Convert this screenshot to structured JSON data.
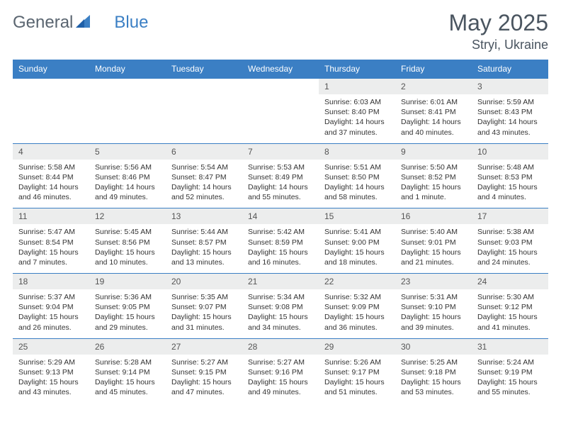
{
  "brand": {
    "g": "General",
    "b": "Blue"
  },
  "title": {
    "month": "May 2025",
    "location": "Stryi, Ukraine"
  },
  "colors": {
    "header_bg": "#3b7fc4",
    "daynum_bg": "#eceded",
    "text": "#333333",
    "title_text": "#4a5560"
  },
  "dow": [
    "Sunday",
    "Monday",
    "Tuesday",
    "Wednesday",
    "Thursday",
    "Friday",
    "Saturday"
  ],
  "weeks": [
    [
      null,
      null,
      null,
      null,
      {
        "n": "1",
        "sr": "6:03 AM",
        "ss": "8:40 PM",
        "dl": "14 hours and 37 minutes."
      },
      {
        "n": "2",
        "sr": "6:01 AM",
        "ss": "8:41 PM",
        "dl": "14 hours and 40 minutes."
      },
      {
        "n": "3",
        "sr": "5:59 AM",
        "ss": "8:43 PM",
        "dl": "14 hours and 43 minutes."
      }
    ],
    [
      {
        "n": "4",
        "sr": "5:58 AM",
        "ss": "8:44 PM",
        "dl": "14 hours and 46 minutes."
      },
      {
        "n": "5",
        "sr": "5:56 AM",
        "ss": "8:46 PM",
        "dl": "14 hours and 49 minutes."
      },
      {
        "n": "6",
        "sr": "5:54 AM",
        "ss": "8:47 PM",
        "dl": "14 hours and 52 minutes."
      },
      {
        "n": "7",
        "sr": "5:53 AM",
        "ss": "8:49 PM",
        "dl": "14 hours and 55 minutes."
      },
      {
        "n": "8",
        "sr": "5:51 AM",
        "ss": "8:50 PM",
        "dl": "14 hours and 58 minutes."
      },
      {
        "n": "9",
        "sr": "5:50 AM",
        "ss": "8:52 PM",
        "dl": "15 hours and 1 minute."
      },
      {
        "n": "10",
        "sr": "5:48 AM",
        "ss": "8:53 PM",
        "dl": "15 hours and 4 minutes."
      }
    ],
    [
      {
        "n": "11",
        "sr": "5:47 AM",
        "ss": "8:54 PM",
        "dl": "15 hours and 7 minutes."
      },
      {
        "n": "12",
        "sr": "5:45 AM",
        "ss": "8:56 PM",
        "dl": "15 hours and 10 minutes."
      },
      {
        "n": "13",
        "sr": "5:44 AM",
        "ss": "8:57 PM",
        "dl": "15 hours and 13 minutes."
      },
      {
        "n": "14",
        "sr": "5:42 AM",
        "ss": "8:59 PM",
        "dl": "15 hours and 16 minutes."
      },
      {
        "n": "15",
        "sr": "5:41 AM",
        "ss": "9:00 PM",
        "dl": "15 hours and 18 minutes."
      },
      {
        "n": "16",
        "sr": "5:40 AM",
        "ss": "9:01 PM",
        "dl": "15 hours and 21 minutes."
      },
      {
        "n": "17",
        "sr": "5:38 AM",
        "ss": "9:03 PM",
        "dl": "15 hours and 24 minutes."
      }
    ],
    [
      {
        "n": "18",
        "sr": "5:37 AM",
        "ss": "9:04 PM",
        "dl": "15 hours and 26 minutes."
      },
      {
        "n": "19",
        "sr": "5:36 AM",
        "ss": "9:05 PM",
        "dl": "15 hours and 29 minutes."
      },
      {
        "n": "20",
        "sr": "5:35 AM",
        "ss": "9:07 PM",
        "dl": "15 hours and 31 minutes."
      },
      {
        "n": "21",
        "sr": "5:34 AM",
        "ss": "9:08 PM",
        "dl": "15 hours and 34 minutes."
      },
      {
        "n": "22",
        "sr": "5:32 AM",
        "ss": "9:09 PM",
        "dl": "15 hours and 36 minutes."
      },
      {
        "n": "23",
        "sr": "5:31 AM",
        "ss": "9:10 PM",
        "dl": "15 hours and 39 minutes."
      },
      {
        "n": "24",
        "sr": "5:30 AM",
        "ss": "9:12 PM",
        "dl": "15 hours and 41 minutes."
      }
    ],
    [
      {
        "n": "25",
        "sr": "5:29 AM",
        "ss": "9:13 PM",
        "dl": "15 hours and 43 minutes."
      },
      {
        "n": "26",
        "sr": "5:28 AM",
        "ss": "9:14 PM",
        "dl": "15 hours and 45 minutes."
      },
      {
        "n": "27",
        "sr": "5:27 AM",
        "ss": "9:15 PM",
        "dl": "15 hours and 47 minutes."
      },
      {
        "n": "28",
        "sr": "5:27 AM",
        "ss": "9:16 PM",
        "dl": "15 hours and 49 minutes."
      },
      {
        "n": "29",
        "sr": "5:26 AM",
        "ss": "9:17 PM",
        "dl": "15 hours and 51 minutes."
      },
      {
        "n": "30",
        "sr": "5:25 AM",
        "ss": "9:18 PM",
        "dl": "15 hours and 53 minutes."
      },
      {
        "n": "31",
        "sr": "5:24 AM",
        "ss": "9:19 PM",
        "dl": "15 hours and 55 minutes."
      }
    ]
  ],
  "labels": {
    "sunrise": "Sunrise: ",
    "sunset": "Sunset: ",
    "daylight": "Daylight: "
  }
}
